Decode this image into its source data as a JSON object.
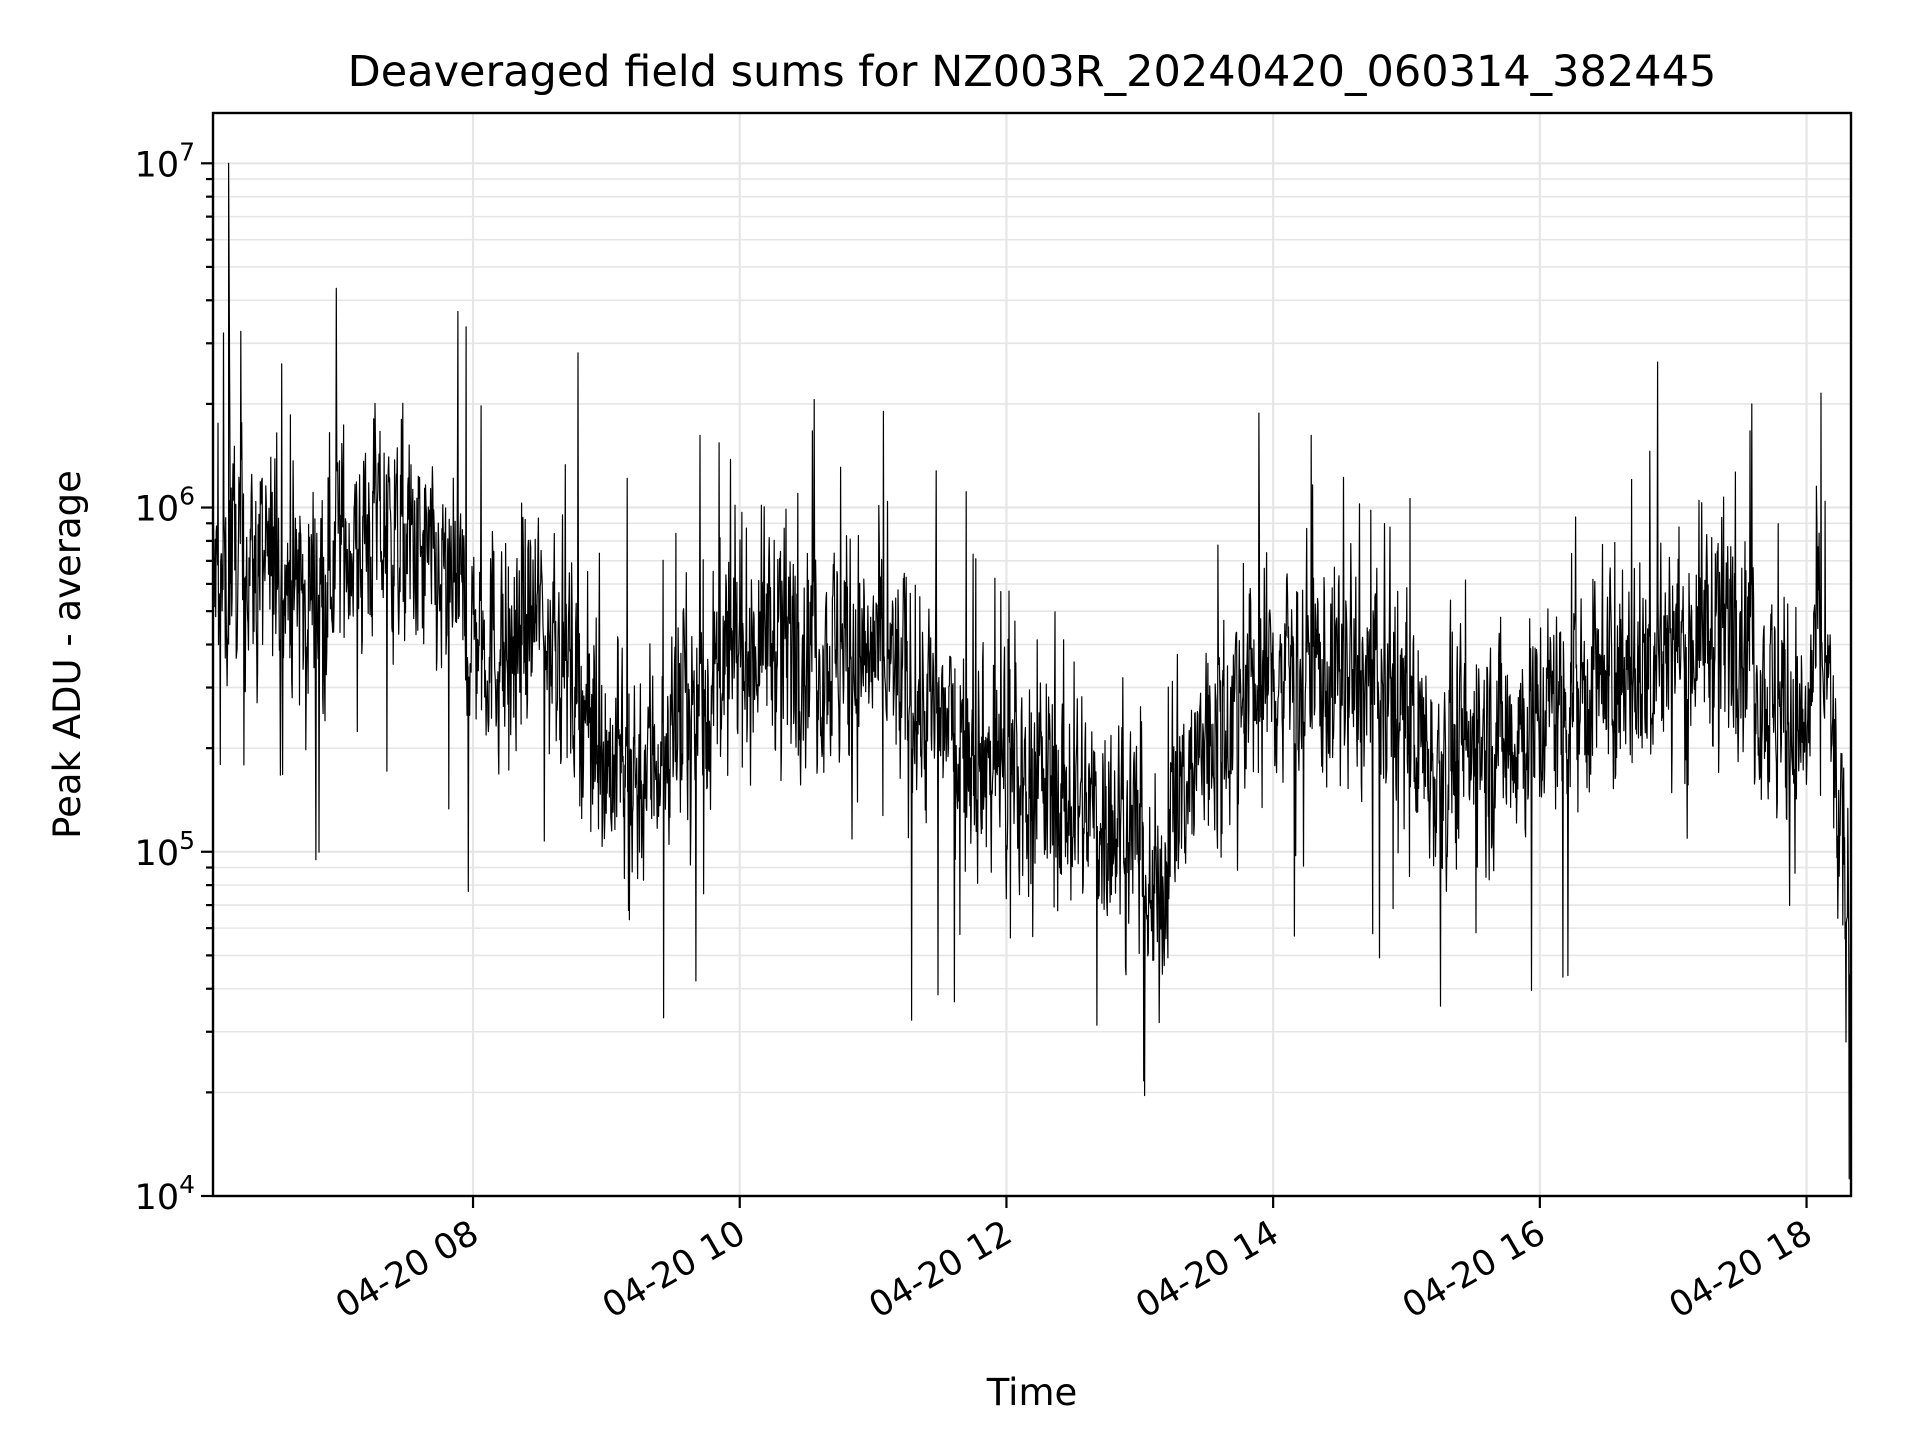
{
  "chart_data": {
    "type": "line",
    "title": "Deaveraged field sums for NZ003R_20240420_060314_382445",
    "xlabel": "Time",
    "ylabel": "Peak ADU - average",
    "yscale": "log",
    "ylim": [
      10000,
      14000000
    ],
    "xlim": [
      "2024-04-20 06:03",
      "2024-04-20 18:20"
    ],
    "grid": true,
    "legend": "none",
    "line_color": "#000000",
    "x_ticks": [
      {
        "value": "2024-04-20 08:00",
        "label": "04-20 08"
      },
      {
        "value": "2024-04-20 10:00",
        "label": "04-20 10"
      },
      {
        "value": "2024-04-20 12:00",
        "label": "04-20 12"
      },
      {
        "value": "2024-04-20 14:00",
        "label": "04-20 14"
      },
      {
        "value": "2024-04-20 16:00",
        "label": "04-20 16"
      },
      {
        "value": "2024-04-20 18:00",
        "label": "04-20 18"
      }
    ],
    "y_ticks": [
      {
        "value": 10000,
        "base": "10",
        "exp": "4"
      },
      {
        "value": 100000,
        "base": "10",
        "exp": "5"
      },
      {
        "value": 1000000,
        "base": "10",
        "exp": "6"
      },
      {
        "value": 10000000,
        "base": "10",
        "exp": "7"
      }
    ],
    "series": [
      {
        "points": [
          [
            "2024-04-20 06:05",
            600000
          ],
          [
            "2024-04-20 06:10",
            10000000
          ],
          [
            "2024-04-20 06:15",
            700000
          ],
          [
            "2024-04-20 06:30",
            650000
          ],
          [
            "2024-04-20 06:45",
            550000
          ],
          [
            "2024-04-20 07:00",
            800000
          ],
          [
            "2024-04-20 07:15",
            850000
          ],
          [
            "2024-04-20 07:30",
            780000
          ],
          [
            "2024-04-20 07:45",
            600000
          ],
          [
            "2024-04-20 08:00",
            450000
          ],
          [
            "2024-04-20 08:15",
            380000
          ],
          [
            "2024-04-20 08:30",
            500000
          ],
          [
            "2024-04-20 08:45",
            320000
          ],
          [
            "2024-04-20 09:00",
            180000
          ],
          [
            "2024-04-20 09:15",
            170000
          ],
          [
            "2024-04-20 09:30",
            230000
          ],
          [
            "2024-04-20 09:45",
            280000
          ],
          [
            "2024-04-20 10:00",
            380000
          ],
          [
            "2024-04-20 10:15",
            450000
          ],
          [
            "2024-04-20 10:30",
            420000
          ],
          [
            "2024-04-20 10:45",
            370000
          ],
          [
            "2024-04-20 11:00",
            380000
          ],
          [
            "2024-04-20 11:15",
            300000
          ],
          [
            "2024-04-20 11:30",
            240000
          ],
          [
            "2024-04-20 11:45",
            200000
          ],
          [
            "2024-04-20 12:00",
            170000
          ],
          [
            "2024-04-20 12:15",
            160000
          ],
          [
            "2024-04-20 12:30",
            140000
          ],
          [
            "2024-04-20 12:45",
            130000
          ],
          [
            "2024-04-20 13:00",
            110000
          ],
          [
            "2024-04-20 13:05",
            60000
          ],
          [
            "2024-04-20 13:15",
            120000
          ],
          [
            "2024-04-20 13:30",
            210000
          ],
          [
            "2024-04-20 13:45",
            280000
          ],
          [
            "2024-04-20 14:00",
            330000
          ],
          [
            "2024-04-20 14:15",
            350000
          ],
          [
            "2024-04-20 14:30",
            320000
          ],
          [
            "2024-04-20 14:45",
            300000
          ],
          [
            "2024-04-20 15:00",
            240000
          ],
          [
            "2024-04-20 15:15",
            180000
          ],
          [
            "2024-04-20 15:30",
            200000
          ],
          [
            "2024-04-20 15:45",
            220000
          ],
          [
            "2024-04-20 16:00",
            250000
          ],
          [
            "2024-04-20 16:15",
            300000
          ],
          [
            "2024-04-20 16:30",
            310000
          ],
          [
            "2024-04-20 16:45",
            330000
          ],
          [
            "2024-04-20 17:00",
            400000
          ],
          [
            "2024-04-20 17:15",
            450000
          ],
          [
            "2024-04-20 17:30",
            500000
          ],
          [
            "2024-04-20 17:45",
            260000
          ],
          [
            "2024-04-20 18:00",
            220000
          ],
          [
            "2024-04-20 18:05",
            450000
          ],
          [
            "2024-04-20 18:10",
            300000
          ],
          [
            "2024-04-20 18:15",
            100000
          ],
          [
            "2024-04-20 18:20",
            60000
          ]
        ]
      }
    ]
  }
}
